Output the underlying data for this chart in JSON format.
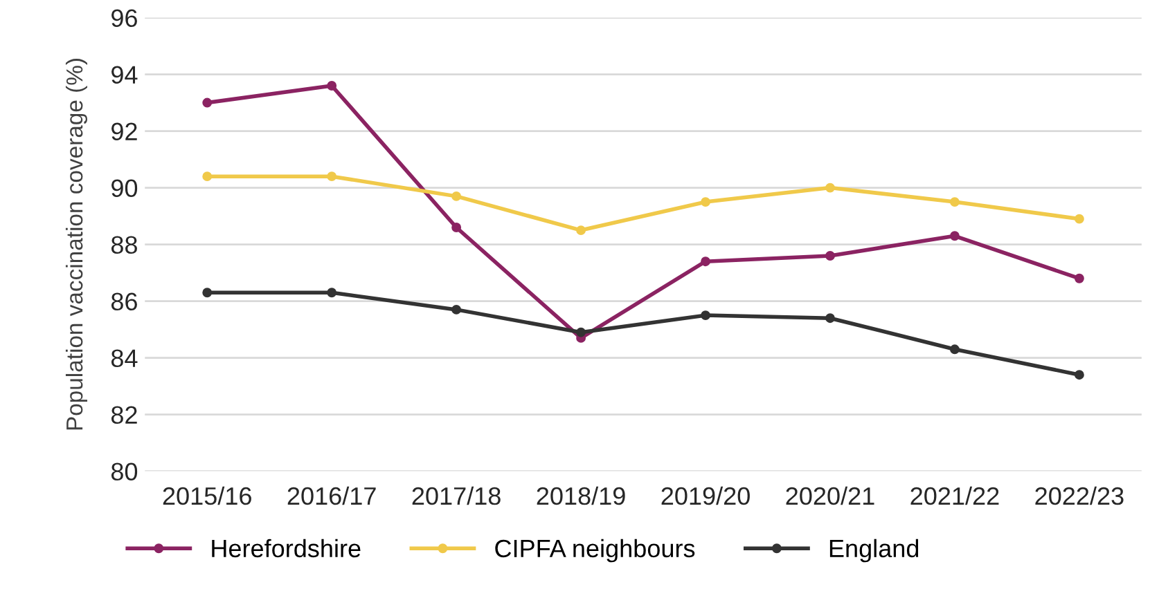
{
  "chart_data": {
    "type": "line",
    "ylabel": "Population vaccination coverage (%)",
    "categories": [
      "2015/16",
      "2016/17",
      "2017/18",
      "2018/19",
      "2019/20",
      "2020/21",
      "2021/22",
      "2022/23"
    ],
    "series": [
      {
        "name": "Herefordshire",
        "color": "#8b2362",
        "values": [
          93.0,
          93.6,
          88.6,
          84.7,
          87.4,
          87.6,
          88.3,
          86.8
        ]
      },
      {
        "name": "CIPFA neighbours",
        "color": "#f0c94a",
        "values": [
          90.4,
          90.4,
          89.7,
          88.5,
          89.5,
          90.0,
          89.5,
          88.9
        ]
      },
      {
        "name": "England",
        "color": "#333333",
        "values": [
          86.3,
          86.3,
          85.7,
          84.9,
          85.5,
          85.4,
          84.3,
          83.4
        ]
      }
    ],
    "ylim": [
      80,
      96
    ],
    "yticks": [
      80,
      82,
      84,
      86,
      88,
      90,
      92,
      94,
      96
    ],
    "grid": "y",
    "legend": "bottom",
    "marker": "circle",
    "line_style": "solid"
  }
}
